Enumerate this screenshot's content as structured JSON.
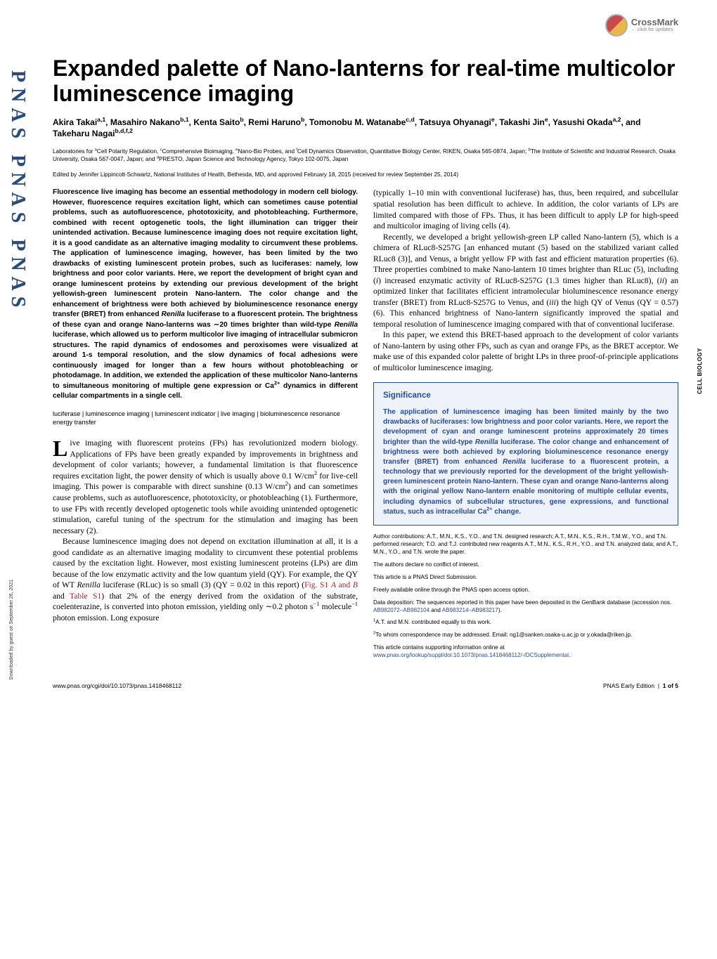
{
  "crossmark": {
    "label": "CrossMark",
    "sub": "← click for updates"
  },
  "pnas_strip": "PNAS  PNAS  PNAS",
  "side_label": "CELL BIOLOGY",
  "download_note": "Downloaded by guest on September 26, 2021",
  "title": "Expanded palette of Nano-lanterns for real-time multicolor luminescence imaging",
  "authors_html": "Akira Takai<sup>a,1</sup>, Masahiro Nakano<sup>b,1</sup>, Kenta Saito<sup>b</sup>, Remi Haruno<sup>b</sup>, Tomonobu M. Watanabe<sup>c,d</sup>, Tatsuya Ohyanagi<sup>e</sup>, Takashi Jin<sup>e</sup>, Yasushi Okada<sup>a,2</sup>, and Takeharu Nagai<sup>b,d,f,2</sup>",
  "affiliations_html": "Laboratories for <sup>a</sup>Cell Polarity Regulation, <sup>c</sup>Comprehensive Bioimaging, <sup>e</sup>Nano-Bio Probes, and <sup>f</sup>Cell Dynamics Observation, Quantitative Biology Center, RIKEN, Osaka 565-0874, Japan; <sup>b</sup>The Institute of Scientific and Industrial Research, Osaka University, Osaka 567-0047, Japan; and <sup>d</sup>PRESTO, Japan Science and Technology Agency, Tokyo 102-0075, Japan",
  "edited": "Edited by Jennifer Lippincott-Schwartz, National Institutes of Health, Bethesda, MD, and approved February 18, 2015 (received for review September 25, 2014)",
  "abstract_html": "Fluorescence live imaging has become an essential methodology in modern cell biology. However, fluorescence requires excitation light, which can sometimes cause potential problems, such as autofluorescence, phototoxicity, and photobleaching. Furthermore, combined with recent optogenetic tools, the light illumination can trigger their unintended activation. Because luminescence imaging does not require excitation light, it is a good candidate as an alternative imaging modality to circumvent these problems. The application of luminescence imaging, however, has been limited by the two drawbacks of existing luminescent protein probes, such as luciferases: namely, low brightness and poor color variants. Here, we report the development of bright cyan and orange luminescent proteins by extending our previous development of the bright yellowish-green luminescent protein Nano-lantern. The color change and the enhancement of brightness were both achieved by bioluminescence resonance energy transfer (BRET) from enhanced <span class=\"italic\">Renilla</span> luciferase to a fluorescent protein. The brightness of these cyan and orange Nano-lanterns was ∼20 times brighter than wild-type <span class=\"italic\">Renilla</span> luciferase, which allowed us to perform multicolor live imaging of intracellular submicron structures. The rapid dynamics of endosomes and peroxisomes were visualized at around 1-s temporal resolution, and the slow dynamics of focal adhesions were continuously imaged for longer than a few hours without photobleaching or photodamage. In addition, we extended the application of these multicolor Nano-lanterns to simultaneous monitoring of multiple gene expression or Ca<sup>2+</sup> dynamics in different cellular compartments in a single cell.",
  "keywords": "luciferase | luminescence imaging | luminescent indicator | live imaging | bioluminescence resonance energy transfer",
  "body_left_p1_html": "<span class=\"dropcap\">L</span>ive imaging with fluorescent proteins (FPs) has revolutionized modern biology. Applications of FPs have been greatly expanded by improvements in brightness and development of color variants; however, a fundamental limitation is that fluorescence requires excitation light, the power density of which is usually above 0.1 W/cm<sup>2</sup> for live-cell imaging. This power is comparable with direct sunshine (0.13 W/cm<sup>2</sup>) and can sometimes cause problems, such as autofluorescence, phototoxicity, or photobleaching (1). Furthermore, to use FPs with recently developed optogenetic tools while avoiding unintended optogenetic stimulation, careful tuning of the spectrum for the stimulation and imaging has been necessary (2).",
  "body_left_p2_html": "Because luminescence imaging does not depend on excitation illumination at all, it is a good candidate as an alternative imaging modality to circumvent these potential problems caused by the excitation light. However, most existing luminescent proteins (LPs) are dim because of the low enzymatic activity and the low quantum yield (QY). For example, the QY of WT <span class=\"italic\">Renilla</span> luciferase (RLuc) is so small (3) (QY = 0.02 in this report) (<span class=\"red-link\">Fig. S1 <span class=\"italic\">A</span> and <span class=\"italic\">B</span></span> and <span class=\"red-link\">Table S1</span>) that 2% of the energy derived from the oxidation of the substrate, coelenterazine, is converted into photon emission, yielding only ∼0.2 photon s<sup>−1</sup> molecule<sup>−1</sup> photon emission. Long exposure",
  "body_right_p1_html": "(typically 1–10 min with conventional luciferase) has, thus, been required, and subcellular spatial resolution has been difficult to achieve. In addition, the color variants of LPs are limited compared with those of FPs. Thus, it has been difficult to apply LP for high-speed and multicolor imaging of living cells (4).",
  "body_right_p2_html": "Recently, we developed a bright yellowish-green LP called Nano-lantern (5), which is a chimera of RLuc8-S257G [an enhanced mutant (5) based on the stabilized variant called RLuc8 (3)], and Venus, a bright yellow FP with fast and efficient maturation properties (6). Three properties combined to make Nano-lantern 10 times brighter than RLuc (5), including (<span class=\"italic\">i</span>) increased enzymatic activity of RLuc8-S257G (1.3 times higher than RLuc8), (<span class=\"italic\">ii</span>) an optimized linker that facilitates efficient intramolecular bioluminescence resonance energy transfer (BRET) from RLuc8-S257G to Venus, and (<span class=\"italic\">iii</span>) the high QY of Venus (QY = 0.57) (6). This enhanced brightness of Nano-lantern significantly improved the spatial and temporal resolution of luminescence imaging compared with that of conventional luciferase.",
  "body_right_p3_html": "In this paper, we extend this BRET-based approach to the development of color variants of Nano-lantern by using other FPs, such as cyan and orange FPs, as the BRET acceptor. We make use of this expanded color palette of bright LPs in three proof-of-principle applications of multicolor luminescence imaging.",
  "significance": {
    "heading": "Significance",
    "text_html": "The application of luminescence imaging has been limited mainly by the two drawbacks of luciferases: low brightness and poor color variants. Here, we report the development of cyan and orange luminescent proteins approximately 20 times brighter than the wild-type <span class=\"italic\">Renilla</span> luciferase. The color change and enhancement of brightness were both achieved by exploring bioluminescence resonance energy transfer (BRET) from enhanced <span class=\"italic\">Renilla</span> luciferase to a fluorescent protein, a technology that we previously reported for the development of the bright yellowish-green luminescent protein Nano-lantern. These cyan and orange Nano-lanterns along with the original yellow Nano-lantern enable monitoring of multiple cellular events, including dynamics of subcellular structures, gene expressions, and functional status, such as intracellular Ca<sup>2+</sup> change."
  },
  "meta": {
    "contrib": "Author contributions: A.T., M.N., K.S., Y.O., and T.N. designed research; A.T., M.N., K.S., R.H., T.M.W., Y.O., and T.N. performed research; T.O. and T.J. contributed new reagents A.T., M.N., K.S., R.H., Y.O., and T.N. analyzed data; and A.T., M.N., Y.O., and T.N. wrote the paper.",
    "conflict": "The authors declare no conflict of interest.",
    "submission": "This article is a PNAS Direct Submission.",
    "open": "Freely available online through the PNAS open access option.",
    "deposit_html": "Data deposition: The sequences reported in this paper have been deposited in the GenBank database (accession nos. <a href=\"#\">AB982072–AB982104</a> and <a href=\"#\">AB983214–AB983217</a>).",
    "equal": "<sup>1</sup>A.T. and M.N. contributed equally to this work.",
    "corr": "<sup>2</sup>To whom correspondence may be addressed. Email: ng1@sanken.osaka-u.ac.jp or y.okada@riken.jp.",
    "supp_html": "This article contains supporting information online at <a href=\"#\">www.pnas.org/lookup/suppl/doi:10.1073/pnas.1418468112/-/DCSupplemental</a>."
  },
  "footer": {
    "left": "www.pnas.org/cgi/doi/10.1073/pnas.1418468112",
    "right_html": "PNAS Early Edition &nbsp;|&nbsp; <b>1 of 5</b>"
  }
}
